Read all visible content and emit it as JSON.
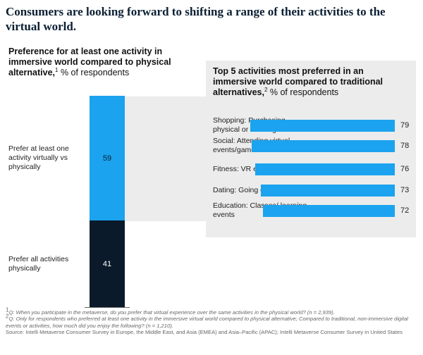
{
  "title": "Consumers are looking forward to shifting a range of their activities to the virtual world.",
  "left_chart": {
    "heading_bold": "Preference for at least one activity in immersive world compared to physical alternative,",
    "heading_sup": "1",
    "heading_unit": " % of respondents"
  },
  "right_chart": {
    "heading_bold": "Top 5 activities most preferred in an immersive world compared to traditional alternatives,",
    "heading_sup": "2",
    "heading_unit": " % of respondents"
  },
  "chart_data": [
    {
      "type": "bar",
      "stacked": true,
      "title": "Preference for at least one activity in immersive world compared to physical alternative",
      "unit": "% of respondents",
      "segments": [
        {
          "name": "Prefer at least one activity virtually vs physically",
          "value": 59,
          "color": "#1ba3ef"
        },
        {
          "name": "Prefer all activities physically",
          "value": 41,
          "color": "#0b1a2b"
        }
      ],
      "ylim": [
        0,
        100
      ]
    },
    {
      "type": "bar",
      "orientation": "horizontal",
      "title": "Top 5 activities most preferred in an immersive world compared to traditional alternatives",
      "unit": "% of respondents",
      "categories": [
        "Shopping: Purchasing physical or virtual goods",
        "Social: Attending virtual events/games",
        "Fitness: VR exercise",
        "Dating: Going on a date",
        "Education: Classes/ learning events"
      ],
      "values": [
        79,
        78,
        76,
        73,
        72
      ],
      "color": "#1ba3ef",
      "xlim": [
        0,
        100
      ]
    }
  ],
  "footnotes": {
    "note1_sup": "1",
    "note1": "Q: When you participate in the metaverse, do you prefer that virtual experience over the same activities in the physical world? (n = 2,939).",
    "note2_sup": "2",
    "note2": "Q: Only for respondents who preferred at least one activity in the immersive virtual world compared to physical alternative; Compared to traditional, non-immersive digital events or activities, how much did you enjoy the following? (n = 1,210).",
    "source": "Source: Intelli Metaverse Consumer Survey in Europe, the Middle East, and Asia (EMEA) and Asia–Pacific (APAC); Intelli Metaverse Consumer Survey in United States"
  }
}
